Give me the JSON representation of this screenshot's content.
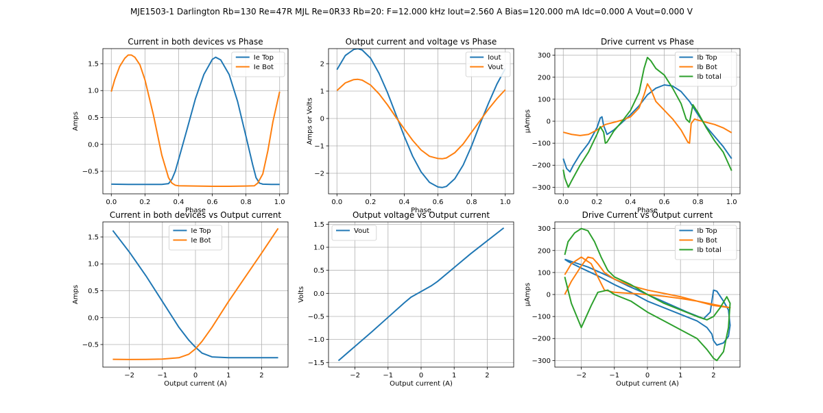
{
  "suptitle": "MJE1503-1 Darlington Rb=130 Re=47R MJL Re=0R33 Rb=20: F=12.000 kHz Iout=2.560 A Bias=120.000 mA Idc=0.000 A Vout=0.000 V",
  "colors": {
    "blue": "#1f77b4",
    "orange": "#ff7f0e",
    "green": "#2ca02c"
  },
  "chart_data": [
    {
      "id": "p1",
      "type": "line",
      "title": "Current in both devices vs Phase",
      "xlabel": "Phase",
      "ylabel": "Amps",
      "xlim": [
        -0.05,
        1.05
      ],
      "ylim": [
        -0.92,
        1.78
      ],
      "xticks": [
        0.0,
        0.2,
        0.4,
        0.6,
        0.8,
        1.0
      ],
      "xtick_labels": [
        "0.0",
        "0.2",
        "0.4",
        "0.6",
        "0.8",
        "1.0"
      ],
      "yticks": [
        -0.5,
        0.0,
        0.5,
        1.0,
        1.5
      ],
      "ytick_labels": [
        "−0.5",
        "0.0",
        "0.5",
        "1.0",
        "1.5"
      ],
      "grid": true,
      "legend": "top-right",
      "series": [
        {
          "name": "Ie Top",
          "color": "#1f77b4",
          "x": [
            0,
            0.1,
            0.2,
            0.3,
            0.34,
            0.36,
            0.38,
            0.4,
            0.45,
            0.5,
            0.55,
            0.6,
            0.62,
            0.65,
            0.7,
            0.75,
            0.8,
            0.84,
            0.86,
            0.88,
            0.9,
            0.95,
            1.0
          ],
          "y": [
            -0.74,
            -0.745,
            -0.745,
            -0.745,
            -0.73,
            -0.65,
            -0.5,
            -0.28,
            0.28,
            0.85,
            1.3,
            1.58,
            1.62,
            1.57,
            1.3,
            0.8,
            0.15,
            -0.38,
            -0.62,
            -0.72,
            -0.74,
            -0.745,
            -0.745
          ]
        },
        {
          "name": "Ie Bot",
          "color": "#ff7f0e",
          "x": [
            0,
            0.02,
            0.05,
            0.08,
            0.1,
            0.12,
            0.14,
            0.17,
            0.2,
            0.25,
            0.3,
            0.34,
            0.36,
            0.38,
            0.4,
            0.5,
            0.6,
            0.7,
            0.8,
            0.85,
            0.87,
            0.9,
            0.93,
            0.96,
            1.0
          ],
          "y": [
            0.98,
            1.2,
            1.45,
            1.6,
            1.66,
            1.66,
            1.62,
            1.48,
            1.2,
            0.55,
            -0.2,
            -0.62,
            -0.72,
            -0.76,
            -0.77,
            -0.775,
            -0.78,
            -0.78,
            -0.775,
            -0.77,
            -0.72,
            -0.55,
            -0.12,
            0.42,
            0.98
          ]
        }
      ]
    },
    {
      "id": "p2",
      "type": "line",
      "title": "Output current and voltage vs Phase",
      "xlabel": "Phase",
      "ylabel": "Amps or Volts",
      "xlim": [
        -0.05,
        1.05
      ],
      "ylim": [
        -2.75,
        2.55
      ],
      "xticks": [
        0.0,
        0.2,
        0.4,
        0.6,
        0.8,
        1.0
      ],
      "xtick_labels": [
        "0.0",
        "0.2",
        "0.4",
        "0.6",
        "0.8",
        "1.0"
      ],
      "yticks": [
        -2,
        -1,
        0,
        1,
        2
      ],
      "ytick_labels": [
        "−2",
        "−1",
        "0",
        "1",
        "2"
      ],
      "grid": true,
      "legend": "top-right",
      "series": [
        {
          "name": "Iout",
          "color": "#1f77b4",
          "x": [
            0,
            0.05,
            0.1,
            0.125,
            0.15,
            0.2,
            0.25,
            0.3,
            0.35,
            0.4,
            0.45,
            0.5,
            0.55,
            0.6,
            0.625,
            0.65,
            0.7,
            0.75,
            0.8,
            0.85,
            0.9,
            0.95,
            1.0
          ],
          "y": [
            1.78,
            2.3,
            2.52,
            2.55,
            2.5,
            2.2,
            1.65,
            0.95,
            0.15,
            -0.65,
            -1.38,
            -1.95,
            -2.33,
            -2.5,
            -2.52,
            -2.48,
            -2.2,
            -1.7,
            -1.0,
            -0.2,
            0.55,
            1.25,
            1.82
          ]
        },
        {
          "name": "Vout",
          "color": "#ff7f0e",
          "x": [
            0,
            0.05,
            0.1,
            0.125,
            0.15,
            0.2,
            0.25,
            0.3,
            0.35,
            0.4,
            0.45,
            0.5,
            0.55,
            0.6,
            0.625,
            0.65,
            0.7,
            0.75,
            0.8,
            0.85,
            0.9,
            0.95,
            1.0
          ],
          "y": [
            1.02,
            1.3,
            1.42,
            1.43,
            1.4,
            1.22,
            0.9,
            0.5,
            0.05,
            -0.38,
            -0.8,
            -1.15,
            -1.38,
            -1.46,
            -1.47,
            -1.44,
            -1.25,
            -0.93,
            -0.5,
            -0.08,
            0.34,
            0.72,
            1.05
          ]
        }
      ]
    },
    {
      "id": "p3",
      "type": "line",
      "title": "Drive current vs Phase",
      "xlabel": "Phase",
      "ylabel": "μAmps",
      "xlim": [
        -0.05,
        1.05
      ],
      "ylim": [
        -330,
        330
      ],
      "xticks": [
        0.0,
        0.2,
        0.4,
        0.6,
        0.8,
        1.0
      ],
      "xtick_labels": [
        "0.0",
        "0.2",
        "0.4",
        "0.6",
        "0.8",
        "1.0"
      ],
      "yticks": [
        -300,
        -200,
        -100,
        0,
        100,
        200,
        300
      ],
      "ytick_labels": [
        "−300",
        "−200",
        "−100",
        "0",
        "100",
        "200",
        "300"
      ],
      "grid": true,
      "legend": "top-right",
      "series": [
        {
          "name": "Ib Top",
          "color": "#1f77b4",
          "x": [
            0,
            0.02,
            0.04,
            0.06,
            0.1,
            0.15,
            0.2,
            0.22,
            0.23,
            0.24,
            0.26,
            0.3,
            0.35,
            0.4,
            0.45,
            0.5,
            0.55,
            0.6,
            0.65,
            0.7,
            0.75,
            0.8,
            0.85,
            0.9,
            0.95,
            1.0
          ],
          "y": [
            -170,
            -215,
            -230,
            -200,
            -150,
            -100,
            -30,
            15,
            20,
            -20,
            -60,
            -40,
            -5,
            30,
            70,
            120,
            150,
            165,
            160,
            135,
            90,
            30,
            -25,
            -70,
            -115,
            -170
          ]
        },
        {
          "name": "Ib Bot",
          "color": "#ff7f0e",
          "x": [
            0,
            0.05,
            0.1,
            0.15,
            0.2,
            0.25,
            0.3,
            0.35,
            0.4,
            0.45,
            0.48,
            0.5,
            0.52,
            0.55,
            0.6,
            0.65,
            0.7,
            0.74,
            0.75,
            0.76,
            0.78,
            0.8,
            0.85,
            0.9,
            0.95,
            1.0
          ],
          "y": [
            -50,
            -60,
            -65,
            -60,
            -40,
            -15,
            -5,
            5,
            20,
            60,
            120,
            170,
            145,
            90,
            50,
            10,
            -40,
            -95,
            -100,
            -10,
            10,
            5,
            -5,
            -15,
            -30,
            -52
          ]
        },
        {
          "name": "Ib total",
          "color": "#2ca02c",
          "x": [
            0,
            0.01,
            0.03,
            0.05,
            0.1,
            0.15,
            0.2,
            0.22,
            0.24,
            0.25,
            0.26,
            0.3,
            0.35,
            0.4,
            0.45,
            0.48,
            0.5,
            0.52,
            0.55,
            0.6,
            0.65,
            0.7,
            0.73,
            0.75,
            0.77,
            0.8,
            0.85,
            0.9,
            0.95,
            1.0
          ],
          "y": [
            -220,
            -260,
            -300,
            -270,
            -200,
            -140,
            -60,
            -25,
            -50,
            -100,
            -95,
            -45,
            0,
            50,
            130,
            240,
            290,
            275,
            240,
            210,
            150,
            80,
            10,
            -5,
            75,
            40,
            -30,
            -90,
            -140,
            -225
          ]
        }
      ]
    },
    {
      "id": "p4",
      "type": "line",
      "title": "Current in both devices vs Output current",
      "xlabel": "Output current (A)",
      "ylabel": "Amps",
      "xlim": [
        -2.8,
        2.8
      ],
      "ylim": [
        -0.92,
        1.78
      ],
      "xticks": [
        -2,
        -1,
        0,
        1,
        2
      ],
      "xtick_labels": [
        "−2",
        "−1",
        "0",
        "1",
        "2"
      ],
      "yticks": [
        -0.5,
        0.0,
        0.5,
        1.0,
        1.5
      ],
      "ytick_labels": [
        "−0.5",
        "0.0",
        "0.5",
        "1.0",
        "1.5"
      ],
      "grid": true,
      "legend": "top-center",
      "series": [
        {
          "name": "Ie Top",
          "color": "#1f77b4",
          "x": [
            -2.5,
            -2.0,
            -1.5,
            -1.0,
            -0.5,
            -0.2,
            0.0,
            0.2,
            0.5,
            1.0,
            1.5,
            2.0,
            2.5
          ],
          "y": [
            1.62,
            1.22,
            0.78,
            0.3,
            -0.18,
            -0.42,
            -0.55,
            -0.66,
            -0.73,
            -0.745,
            -0.745,
            -0.745,
            -0.745
          ]
        },
        {
          "name": "Ie Bot",
          "color": "#ff7f0e",
          "x": [
            -2.5,
            -2.0,
            -1.5,
            -1.0,
            -0.5,
            -0.2,
            0.0,
            0.2,
            0.5,
            1.0,
            1.5,
            2.0,
            2.5
          ],
          "y": [
            -0.775,
            -0.778,
            -0.776,
            -0.77,
            -0.745,
            -0.68,
            -0.58,
            -0.44,
            -0.18,
            0.3,
            0.75,
            1.2,
            1.66
          ]
        }
      ]
    },
    {
      "id": "p5",
      "type": "line",
      "title": "Output voltage vs Output current",
      "xlabel": "Output current (A)",
      "ylabel": "Volts",
      "xlim": [
        -2.8,
        2.8
      ],
      "ylim": [
        -1.6,
        1.55
      ],
      "xticks": [
        -2,
        -1,
        0,
        1,
        2
      ],
      "xtick_labels": [
        "−2",
        "−1",
        "0",
        "1",
        "2"
      ],
      "yticks": [
        -1.5,
        -1.0,
        -0.5,
        0.0,
        0.5,
        1.0,
        1.5
      ],
      "ytick_labels": [
        "−1.5",
        "−1.0",
        "−0.5",
        "0.0",
        "0.5",
        "1.0",
        "1.5"
      ],
      "grid": true,
      "legend": "top-left",
      "series": [
        {
          "name": "Vout",
          "color": "#1f77b4",
          "x": [
            -2.5,
            -2.0,
            -1.5,
            -1.0,
            -0.5,
            -0.3,
            0.0,
            0.3,
            0.5,
            1.0,
            1.5,
            2.0,
            2.5
          ],
          "y": [
            -1.46,
            -1.15,
            -0.84,
            -0.52,
            -0.2,
            -0.08,
            0.04,
            0.16,
            0.26,
            0.56,
            0.86,
            1.14,
            1.42
          ]
        }
      ]
    },
    {
      "id": "p6",
      "type": "line",
      "title": "Drive Current vs Output current",
      "xlabel": "Output current (A)",
      "ylabel": "μAmps",
      "xlim": [
        -2.8,
        2.8
      ],
      "ylim": [
        -330,
        330
      ],
      "xticks": [
        -2,
        -1,
        0,
        1,
        2
      ],
      "xtick_labels": [
        "−2",
        "−1",
        "0",
        "1",
        "2"
      ],
      "yticks": [
        -300,
        -200,
        -100,
        0,
        100,
        200,
        300
      ],
      "ytick_labels": [
        "−300",
        "−200",
        "−100",
        "0",
        "100",
        "200",
        "300"
      ],
      "grid": true,
      "legend": "top-right",
      "series": [
        {
          "name": "Ib Top",
          "color": "#1f77b4",
          "x": [
            -2.5,
            -1.8,
            -1.2,
            -0.6,
            0.0,
            0.6,
            1.2,
            1.7,
            1.9,
            2.0,
            2.1,
            2.3,
            2.45,
            2.5,
            2.45,
            2.3,
            2.1,
            2.0,
            1.95,
            1.8,
            1.5,
            1.0,
            0.5,
            0.0,
            -0.5,
            -1.0,
            -1.5,
            -2.0,
            -2.4,
            -2.5
          ],
          "y": [
            160,
            125,
            85,
            40,
            0,
            -40,
            -80,
            -110,
            -80,
            20,
            15,
            -30,
            -70,
            -140,
            -190,
            -220,
            -230,
            -210,
            -180,
            -150,
            -120,
            -90,
            -60,
            -30,
            10,
            45,
            85,
            120,
            150,
            160
          ]
        },
        {
          "name": "Ib Bot",
          "color": "#ff7f0e",
          "x": [
            -2.5,
            -2.3,
            -2.0,
            -1.7,
            -1.5,
            -1.3,
            -1.0,
            -0.5,
            0.0,
            0.5,
            1.0,
            1.5,
            2.0,
            2.5,
            2.0,
            1.5,
            1.0,
            0.5,
            0.0,
            -0.5,
            -1.0,
            -1.3,
            -1.5,
            -1.65,
            -1.8,
            -2.0,
            -2.3,
            -2.5
          ],
          "y": [
            90,
            140,
            170,
            140,
            80,
            20,
            10,
            5,
            0,
            -8,
            -18,
            -30,
            -45,
            -60,
            -50,
            -30,
            -10,
            5,
            20,
            40,
            70,
            100,
            140,
            165,
            170,
            130,
            60,
            0
          ]
        },
        {
          "name": "Ib total",
          "color": "#2ca02c",
          "x": [
            -2.5,
            -2.4,
            -2.2,
            -2.0,
            -1.8,
            -1.6,
            -1.4,
            -1.2,
            -1.0,
            -0.5,
            0.0,
            0.5,
            1.0,
            1.5,
            1.8,
            2.0,
            2.2,
            2.4,
            2.5,
            2.45,
            2.3,
            2.1,
            2.0,
            1.8,
            1.5,
            1.0,
            0.5,
            0.0,
            -0.5,
            -1.0,
            -1.2,
            -1.5,
            -1.7,
            -2.0,
            -2.3,
            -2.5
          ],
          "y": [
            180,
            240,
            280,
            300,
            290,
            240,
            170,
            110,
            80,
            45,
            0,
            -40,
            -70,
            -100,
            -115,
            -100,
            -60,
            -10,
            -40,
            -150,
            -260,
            -300,
            -290,
            -250,
            -200,
            -160,
            -120,
            -80,
            -30,
            0,
            20,
            10,
            -50,
            -150,
            -40,
            80
          ]
        }
      ]
    }
  ]
}
